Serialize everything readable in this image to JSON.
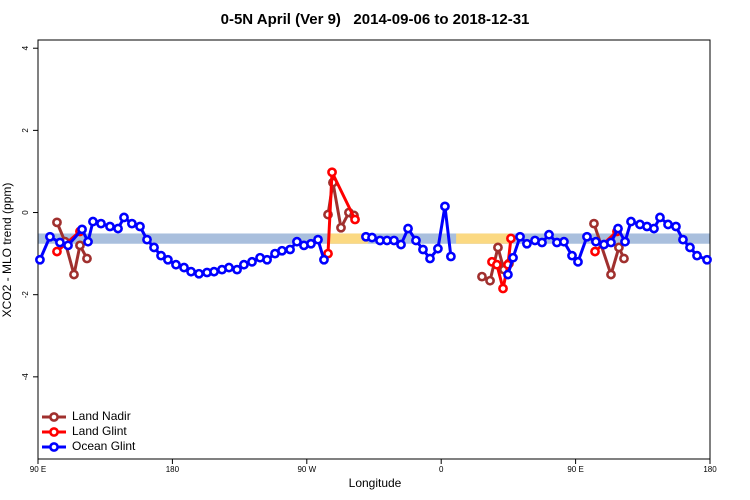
{
  "chart_data": {
    "type": "line",
    "title": "0-5N April (Ver 9)   2014-09-06 to 2018-12-31",
    "xlabel": "Longitude",
    "ylabel": "XCO2 - MLO trend (ppm)",
    "xlim": [
      90,
      540
    ],
    "ylim": [
      -6,
      4.2
    ],
    "xticks": [
      {
        "value": 90,
        "label": "90 E"
      },
      180,
      {
        "value": 270,
        "label": "90 W"
      },
      {
        "value": 360,
        "label": "0"
      },
      {
        "value": 450,
        "label": "90 E"
      },
      {
        "value": 540,
        "label": "180"
      }
    ],
    "yticks": [
      -4,
      -2,
      0,
      2,
      4
    ],
    "legend": "bottomleft",
    "bands": [
      {
        "color": "#a9bfdd",
        "x": [
          90,
          540
        ],
        "y": [
          -0.51,
          -0.76
        ]
      },
      {
        "color": "#fbd982",
        "x": [
          285.5,
          311
        ],
        "y": [
          -0.51,
          -0.76
        ]
      },
      {
        "color": "#fbd982",
        "x": [
          370,
          406
        ],
        "y": [
          -0.51,
          -0.76
        ]
      }
    ],
    "series": [
      {
        "name": "Land Nadir",
        "color": "#a0302e",
        "x": [
          102.7,
          108.1,
          114.1,
          118.1,
          122.8,
          null,
          284.2,
          287.5,
          292.9,
          298.2,
          301.6,
          null,
          387.3,
          392.7,
          398.0,
          402.0,
          405.4,
          null,
          462.3,
          473.7,
          479.0,
          482.4
        ],
        "values": [
          -0.24,
          -0.71,
          -1.51,
          -0.8,
          -1.12,
          null,
          -0.05,
          0.73,
          -0.37,
          0.0,
          -0.07,
          null,
          -1.56,
          -1.66,
          -0.85,
          -1.39,
          -1.24,
          null,
          -0.27,
          -1.51,
          -0.85,
          -1.12
        ]
      },
      {
        "name": "Land Glint",
        "color": "#ff0000",
        "x": [
          102.7,
          118.1,
          null,
          284.2,
          286.9,
          302.3,
          null,
          394.0,
          397.3,
          401.4,
          404.7,
          406.7,
          null,
          463.0,
          477.7
        ],
        "values": [
          -0.95,
          -0.46,
          null,
          -1.0,
          0.98,
          -0.17,
          null,
          -1.2,
          -1.27,
          -1.85,
          -1.27,
          -0.63,
          null,
          -0.95,
          -0.46
        ]
      },
      {
        "name": "Ocean Glint",
        "color": "#0000ff",
        "x": [
          91.3,
          98.0,
          104.7,
          110.1,
          119.5,
          123.5,
          126.8,
          132.2,
          138.2,
          143.6,
          147.6,
          152.9,
          158.3,
          163.0,
          167.7,
          172.4,
          177.0,
          182.4,
          187.8,
          192.5,
          197.8,
          203.2,
          207.9,
          213.2,
          217.9,
          223.3,
          227.9,
          233.3,
          238.7,
          243.4,
          248.7,
          253.4,
          258.8,
          263.4,
          268.1,
          272.8,
          277.5,
          281.5,
          null,
          309.6,
          313.7,
          319.0,
          323.7,
          328.4,
          333.1,
          337.8,
          343.1,
          347.8,
          352.5,
          357.8,
          362.5,
          366.5,
          null,
          404.7,
          408.1,
          412.8,
          417.4,
          422.8,
          427.5,
          432.2,
          437.5,
          442.2,
          447.6,
          451.6,
          457.6,
          463.6,
          469.0,
          473.7,
          478.4,
          483.1,
          487.1,
          493.1,
          497.8,
          502.5,
          506.5,
          511.9,
          517.2,
          521.9,
          526.6,
          531.3,
          538.0
        ],
        "values": [
          -1.15,
          -0.59,
          -0.73,
          -0.8,
          -0.41,
          -0.71,
          -0.22,
          -0.27,
          -0.34,
          -0.39,
          -0.12,
          -0.27,
          -0.34,
          -0.66,
          -0.85,
          -1.05,
          -1.15,
          -1.27,
          -1.34,
          -1.44,
          -1.49,
          -1.46,
          -1.44,
          -1.39,
          -1.34,
          -1.39,
          -1.27,
          -1.2,
          -1.1,
          -1.15,
          -1.0,
          -0.93,
          -0.9,
          -0.71,
          -0.8,
          -0.76,
          -0.66,
          -1.15,
          null,
          -0.59,
          -0.61,
          -0.68,
          -0.68,
          -0.68,
          -0.78,
          -0.39,
          -0.68,
          -0.9,
          -1.12,
          -0.88,
          0.15,
          -1.07,
          null,
          -1.51,
          -1.1,
          -0.59,
          -0.76,
          -0.68,
          -0.73,
          -0.54,
          -0.73,
          -0.71,
          -1.05,
          -1.2,
          -0.59,
          -0.71,
          -0.78,
          -0.73,
          -0.39,
          -0.71,
          -0.22,
          -0.29,
          -0.34,
          -0.39,
          -0.12,
          -0.29,
          -0.34,
          -0.66,
          -0.85,
          -1.05,
          -1.15
        ]
      }
    ]
  }
}
